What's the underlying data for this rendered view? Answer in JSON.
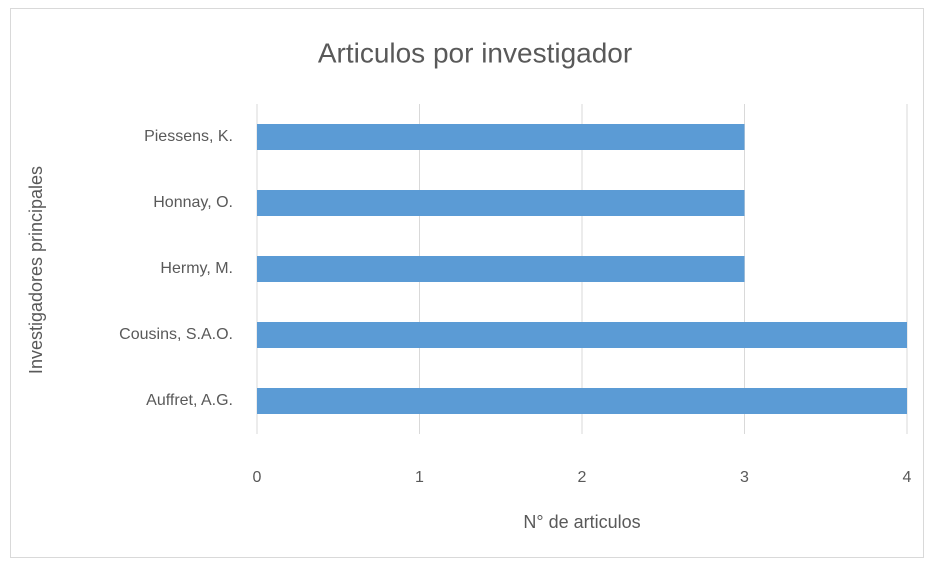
{
  "chart_data": {
    "type": "barh",
    "title": "Articulos por investigador",
    "categories": [
      "Auffret, A.G.",
      "Cousins, S.A.O.",
      "Hermy, M.",
      "Honnay, O.",
      "Piessens, K."
    ],
    "values": [
      4,
      4,
      3,
      3,
      3
    ],
    "color": "#5b9bd5",
    "xlim": [
      0,
      4
    ],
    "xticks": [
      0,
      1,
      2,
      3,
      4
    ],
    "grid": true,
    "xlabel": "N° de articulos",
    "ylabel": "Investigadores principales"
  }
}
